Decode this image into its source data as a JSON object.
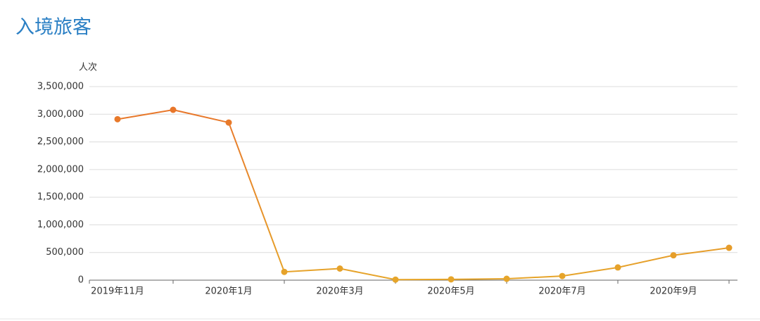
{
  "chart_data": {
    "type": "line",
    "title": "入境旅客",
    "y_axis_label": "人次",
    "categories": [
      "2019年11月",
      null,
      "2020年1月",
      null,
      "2020年3月",
      null,
      "2020年5月",
      null,
      "2020年7月",
      null,
      "2020年9月",
      null
    ],
    "series": [
      {
        "values": [
          2910000,
          3080000,
          2850000,
          150000,
          210000,
          10000,
          15000,
          25000,
          75000,
          230000,
          450000,
          585000
        ]
      }
    ],
    "colors": [
      "#e6a52a",
      "#e8702a"
    ],
    "ylim": [
      0,
      3500000
    ],
    "yticks": [
      0,
      {
        "value": 500000,
        "label": "500,000"
      },
      {
        "value": 1000000,
        "label": "1,000,000"
      },
      {
        "value": 1500000,
        "label": "1,500,000"
      },
      {
        "value": 2000000,
        "label": "2,000,000"
      },
      {
        "value": 2500000,
        "label": "2,500,000"
      },
      {
        "value": 3000000,
        "label": "3,000,000"
      },
      {
        "value": 3500000,
        "label": "3,500,000"
      }
    ],
    "grid": true
  }
}
